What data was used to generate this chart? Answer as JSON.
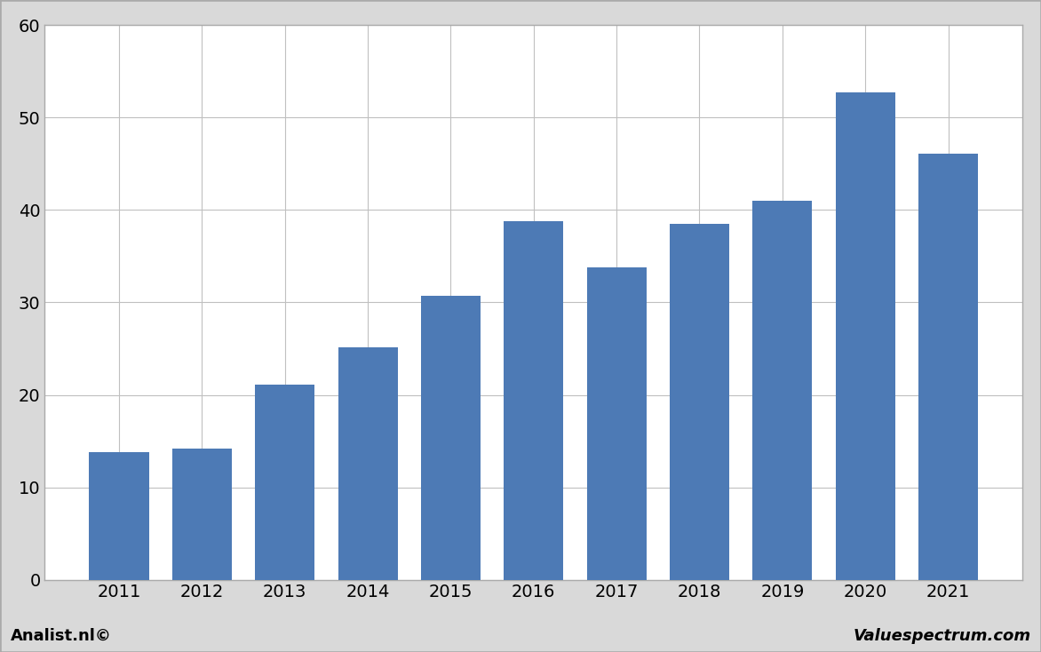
{
  "categories": [
    "2011",
    "2012",
    "2013",
    "2014",
    "2015",
    "2016",
    "2017",
    "2018",
    "2019",
    "2020",
    "2021"
  ],
  "values": [
    13.8,
    14.2,
    21.1,
    25.1,
    30.7,
    38.8,
    33.8,
    38.5,
    41.0,
    52.7,
    46.1
  ],
  "bar_color": "#4d7ab5",
  "ylim": [
    0,
    60
  ],
  "yticks": [
    0,
    10,
    20,
    30,
    40,
    50,
    60
  ],
  "background_color": "#d9d9d9",
  "plot_bg_color": "#ffffff",
  "border_color": "#aaaaaa",
  "grid_color": "#c0c0c0",
  "tick_fontsize": 14,
  "footer_left": "Analist.nl©",
  "footer_right": "Valuespectrum.com",
  "footer_fontsize": 13,
  "bar_width": 0.72
}
